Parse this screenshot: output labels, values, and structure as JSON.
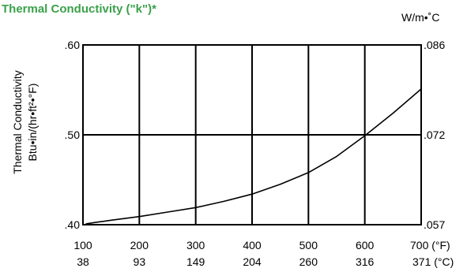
{
  "chart_data": {
    "type": "line",
    "title": "Thermal Conductivity (\"k\")*",
    "title_color": "#3aa14a",
    "right_unit": "W/m•˚C",
    "ylabel": [
      "Thermal Conductivity",
      "Btu•in/(hr•ft²•°F)"
    ],
    "xlim": [
      100,
      700
    ],
    "ylim": [
      0.4,
      0.6
    ],
    "grid": true,
    "x_ticks_f": [
      100,
      200,
      300,
      400,
      500,
      600,
      700
    ],
    "x_tick_labels_f": [
      "100",
      "200",
      "300",
      "400",
      "500",
      "600",
      "700 (°F)"
    ],
    "x_tick_labels_c": [
      "38",
      "93",
      "149",
      "204",
      "260",
      "316",
      "371 (°C)"
    ],
    "y_ticks_left": [
      0.4,
      0.5,
      0.6
    ],
    "y_tick_labels_left": [
      ".40",
      ".50",
      ".60"
    ],
    "y_tick_labels_right": [
      ".057",
      ".072",
      ".086"
    ],
    "series": [
      {
        "color": "#000000",
        "x": [
          105,
          150,
          200,
          250,
          300,
          350,
          400,
          450,
          500,
          550,
          600,
          650,
          700
        ],
        "y": [
          0.401,
          0.405,
          0.409,
          0.414,
          0.419,
          0.426,
          0.434,
          0.445,
          0.458,
          0.476,
          0.499,
          0.524,
          0.551
        ]
      }
    ]
  }
}
